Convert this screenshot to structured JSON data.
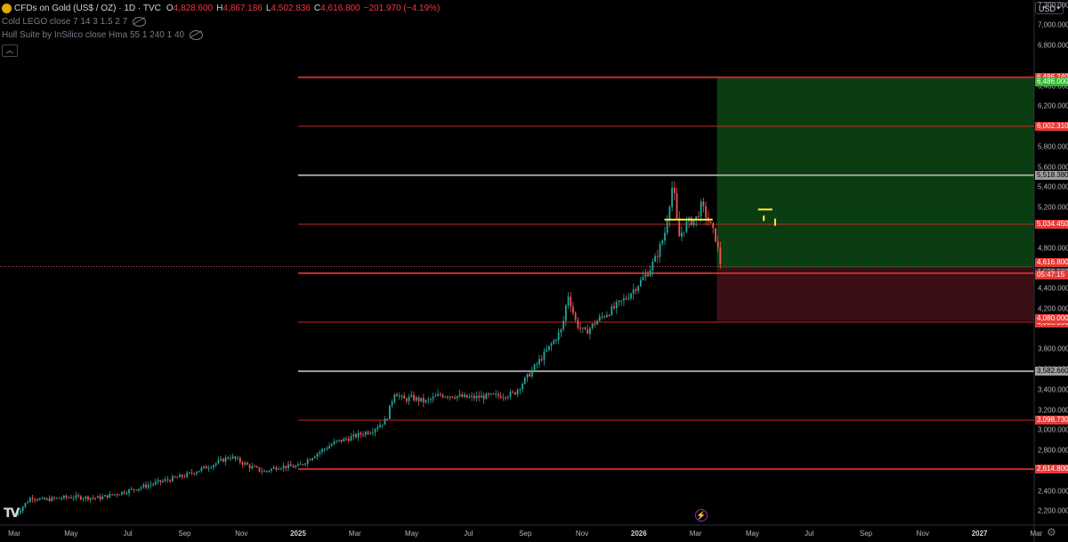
{
  "header": {
    "symbol_title": "CFDs on Gold (US$ / OZ) · 1D · TVC",
    "ohlc": [
      {
        "k": "O",
        "v": "4,828.600"
      },
      {
        "k": "H",
        "v": "4,867.186"
      },
      {
        "k": "L",
        "v": "4,502.836"
      },
      {
        "k": "C",
        "v": "4,616.800"
      }
    ],
    "change": "−201.970 (−4.19%)",
    "indicators": [
      "Cold LEGO close 7 14 3 1.5 2 7",
      "Hull Suite by InSilico close Hma 55 1 240 1 40"
    ]
  },
  "currency": "USD",
  "colors": {
    "background": "#000000",
    "up": "#26a69a",
    "down": "#ef5350",
    "red_line": "#c62828",
    "gray_line": "#9e9e9e",
    "profit_zone": "#0b3d12",
    "loss_zone": "#3a0f14",
    "label_red": "#e53935",
    "label_green": "#2eb82e",
    "label_gray": "#9e9e9e",
    "label_dark": "#37393f",
    "marker_yellow": "#ffeb3b"
  },
  "chart_data": {
    "type": "candlestick",
    "instrument": "CFDs on Gold (US$ / OZ)",
    "timeframe": "1D",
    "ylim": [
      2150,
      7250
    ],
    "y_ticks": [
      "7,200.000",
      "7,000.000",
      "6,800.000",
      "6,400.000",
      "6,200.000",
      "5,800.000",
      "5,600.000",
      "5,400.000",
      "5,200.000",
      "4,800.000",
      "4,400.000",
      "4,200.000",
      "3,800.000",
      "3,600.000",
      "3,400.000",
      "3,200.000",
      "3,000.000",
      "2,800.000",
      "2,400.000",
      "2,200.000"
    ],
    "time_axis": [
      {
        "label": "Mar",
        "t": 0
      },
      {
        "label": "May",
        "t": 2
      },
      {
        "label": "Jul",
        "t": 4
      },
      {
        "label": "Sep",
        "t": 6
      },
      {
        "label": "Nov",
        "t": 8
      },
      {
        "label": "2025",
        "t": 10,
        "year": true
      },
      {
        "label": "Mar",
        "t": 12
      },
      {
        "label": "May",
        "t": 14
      },
      {
        "label": "Jul",
        "t": 16
      },
      {
        "label": "Sep",
        "t": 18
      },
      {
        "label": "Nov",
        "t": 20
      },
      {
        "label": "2026",
        "t": 22,
        "year": true
      },
      {
        "label": "Mar",
        "t": 24
      },
      {
        "label": "May",
        "t": 26
      },
      {
        "label": "Jul",
        "t": 28
      },
      {
        "label": "Sep",
        "t": 30
      },
      {
        "label": "Nov",
        "t": 32
      },
      {
        "label": "2027",
        "t": 34,
        "year": true
      },
      {
        "label": "Mar",
        "t": 36
      }
    ],
    "trend_path": [
      [
        0.0,
        2150
      ],
      [
        0.6,
        2340
      ],
      [
        1.0,
        2310
      ],
      [
        2.0,
        2340
      ],
      [
        3.0,
        2330
      ],
      [
        4.0,
        2400
      ],
      [
        5.0,
        2480
      ],
      [
        6.0,
        2550
      ],
      [
        7.0,
        2660
      ],
      [
        7.6,
        2740
      ],
      [
        8.3,
        2640
      ],
      [
        8.8,
        2590
      ],
      [
        9.3,
        2640
      ],
      [
        10.0,
        2640
      ],
      [
        10.6,
        2760
      ],
      [
        11.3,
        2880
      ],
      [
        12.0,
        2940
      ],
      [
        12.6,
        3000
      ],
      [
        13.1,
        3100
      ],
      [
        13.4,
        3380
      ],
      [
        13.7,
        3300
      ],
      [
        14.0,
        3320
      ],
      [
        14.5,
        3280
      ],
      [
        15.0,
        3350
      ],
      [
        15.5,
        3340
      ],
      [
        16.0,
        3320
      ],
      [
        17.0,
        3340
      ],
      [
        17.6,
        3360
      ],
      [
        18.0,
        3500
      ],
      [
        18.4,
        3650
      ],
      [
        18.8,
        3800
      ],
      [
        19.3,
        4000
      ],
      [
        19.5,
        4350
      ],
      [
        19.8,
        4050
      ],
      [
        20.1,
        3960
      ],
      [
        20.6,
        4100
      ],
      [
        21.1,
        4200
      ],
      [
        21.6,
        4320
      ],
      [
        22.0,
        4450
      ],
      [
        22.3,
        4550
      ],
      [
        22.6,
        4700
      ],
      [
        22.9,
        4930
      ],
      [
        23.2,
        5450
      ],
      [
        23.4,
        4900
      ],
      [
        23.7,
        5050
      ],
      [
        24.0,
        5080
      ],
      [
        24.2,
        5220
      ],
      [
        24.4,
        5100
      ],
      [
        24.7,
        4900
      ],
      [
        24.9,
        4617
      ]
    ],
    "last_price": 4616.8,
    "countdown": "05:47:15",
    "levels": [
      {
        "price": 6486.24,
        "label": "6,486.240",
        "color": "red",
        "weight": 2
      },
      {
        "price": 6002.31,
        "label": "6,002.310",
        "color": "red",
        "weight": 1
      },
      {
        "price": 5518.38,
        "label": "5,518.380",
        "color": "gray",
        "weight": 2
      },
      {
        "price": 5034.45,
        "label": "5,034.450",
        "color": "red",
        "weight": 1
      },
      {
        "price": 4550.52,
        "label": "4,550.520",
        "color": "red",
        "weight": 2
      },
      {
        "price": 4066.59,
        "label": "4,066.590",
        "color": "red",
        "weight": 1
      },
      {
        "price": 3582.66,
        "label": "3,582.660",
        "color": "gray",
        "weight": 2
      },
      {
        "price": 3098.73,
        "label": "3,098.730",
        "color": "red",
        "weight": 1
      },
      {
        "price": 2614.8,
        "label": "2,614.800",
        "color": "red",
        "weight": 2
      }
    ],
    "position": {
      "entry": 4600.0,
      "target": 6486.0,
      "stop": 4080.0,
      "start_t": 24.75,
      "end_t": 37.5,
      "labels": {
        "entry": "4,600.000",
        "target": "6,486.000",
        "stop": "4,080.000",
        "last": "4,616.800"
      }
    },
    "yellow_line": {
      "price": 5080,
      "t0": 22.9,
      "t1": 24.6
    }
  }
}
